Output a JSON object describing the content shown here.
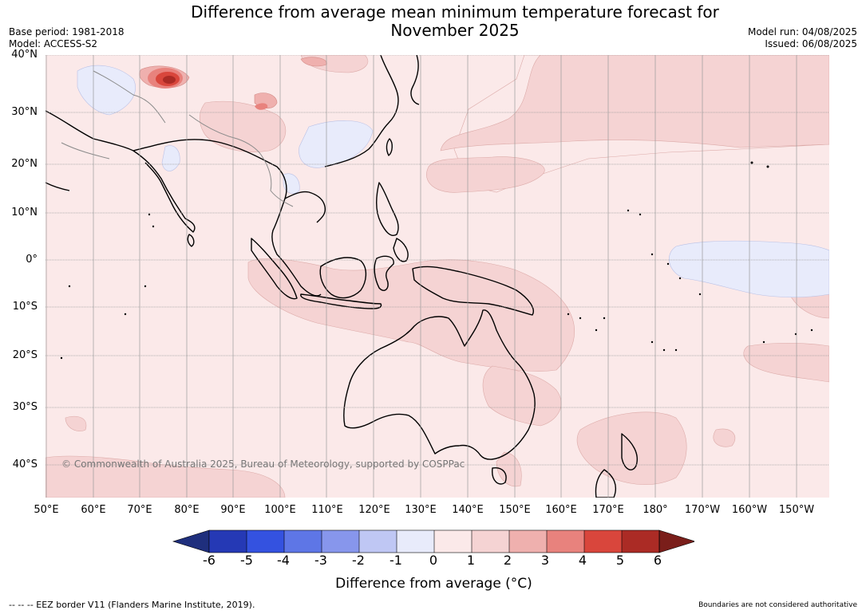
{
  "title": "Difference from average mean minimum temperature forecast for November 2025",
  "meta_left": {
    "base_period": "Base period: 1981-2018",
    "model": "Model: ACCESS-S2"
  },
  "meta_right": {
    "model_run": "Model run: 04/08/2025",
    "issued": "Issued: 06/08/2025"
  },
  "copyright": "© Commonwealth of Australia 2025, Bureau of Meteorology, supported by COSPPac",
  "lat_labels": [
    "40°N",
    "30°N",
    "20°N",
    "10°N",
    "0°",
    "10°S",
    "20°S",
    "30°S",
    "40°S"
  ],
  "lon_labels": [
    "50°E",
    "60°E",
    "70°E",
    "80°E",
    "90°E",
    "100°E",
    "110°E",
    "120°E",
    "130°E",
    "140°E",
    "150°E",
    "160°E",
    "170°E",
    "180°",
    "170°W",
    "160°W",
    "150°W"
  ],
  "colorbar": {
    "title": "Difference from average (°C)",
    "ticks": [
      "-6",
      "-5",
      "-4",
      "-3",
      "-2",
      "-1",
      "0",
      "1",
      "2",
      "3",
      "4",
      "5",
      "6"
    ],
    "colors": [
      "#1f2f7d",
      "#2539b5",
      "#3452e0",
      "#5e76e6",
      "#8796ec",
      "#bfc7f4",
      "#e8ebfb",
      "#fbe9e9",
      "#f5d3d3",
      "#efb0ae",
      "#e8827d",
      "#d9463c",
      "#ab2b25",
      "#7a1e1a"
    ]
  },
  "footer_left": "--  --  -- EEZ border V11 (Flanders Marine Institute, 2019).",
  "footer_right": "Boundaries are not considered authoritative"
}
